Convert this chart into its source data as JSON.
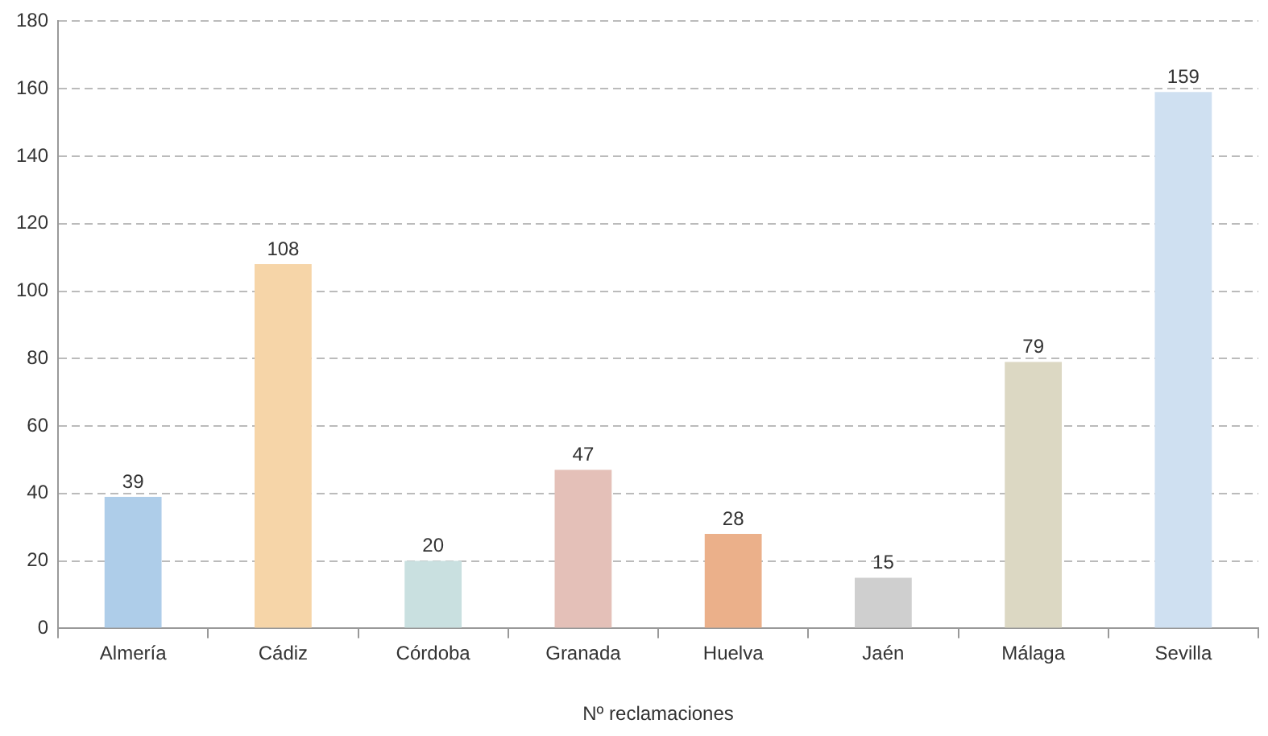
{
  "chart_data": {
    "type": "bar",
    "xlabel": "Nº reclamaciones",
    "categories": [
      "Almería",
      "Cádiz",
      "Córdoba",
      "Granada",
      "Huelva",
      "Jaén",
      "Málaga",
      "Sevilla"
    ],
    "values": [
      39,
      108,
      20,
      47,
      28,
      15,
      79,
      159
    ],
    "colors": [
      "#aecde9",
      "#f6d5a8",
      "#c9e0e0",
      "#e4c0b8",
      "#ebb08a",
      "#cfcfcf",
      "#dcd8c3",
      "#cfe0f1"
    ],
    "ylim": [
      0,
      180
    ],
    "yticks": [
      0,
      20,
      40,
      60,
      80,
      100,
      120,
      140,
      160,
      180
    ],
    "grid": "y",
    "legend": false,
    "data_labels": true
  }
}
